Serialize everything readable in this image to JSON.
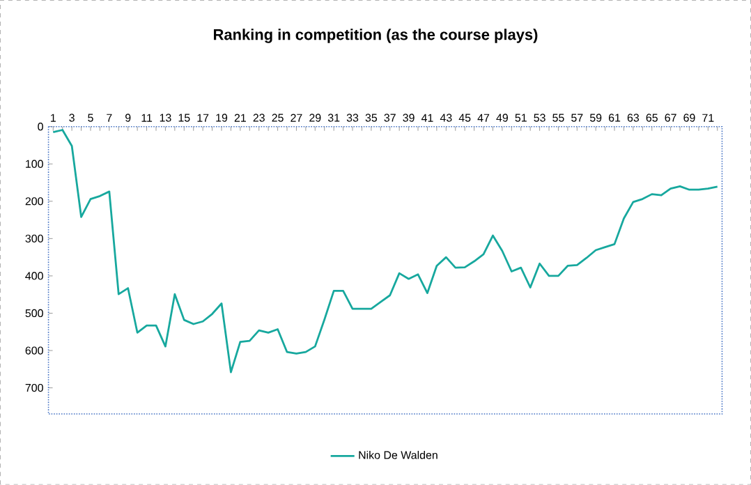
{
  "chart_data": {
    "type": "line",
    "title": "Ranking in competition (as the course plays)",
    "categories": [
      "1",
      null,
      "3",
      null,
      "5",
      null,
      "7",
      null,
      "9",
      null,
      "11",
      null,
      "13",
      null,
      "15",
      null,
      "17",
      null,
      "19",
      null,
      "21",
      null,
      "23",
      null,
      "25",
      null,
      "27",
      null,
      "29",
      null,
      "31",
      null,
      "33",
      null,
      "35",
      null,
      "37",
      null,
      "39",
      null,
      "41",
      null,
      "43",
      null,
      "45",
      null,
      "47",
      null,
      "49",
      null,
      "51",
      null,
      "53",
      null,
      "55",
      null,
      "57",
      null,
      "59",
      null,
      "61",
      null,
      "63",
      null,
      "65",
      null,
      "67",
      null,
      "69",
      null,
      "71",
      null
    ],
    "series": [
      {
        "name": "Niko De Walden",
        "color": "#17a89e",
        "values": [
          15,
          9,
          52,
          242,
          194,
          186,
          174,
          449,
          433,
          552,
          533,
          533,
          589,
          449,
          518,
          529,
          522,
          502,
          474,
          658,
          577,
          574,
          546,
          552,
          543,
          604,
          608,
          604,
          589,
          517,
          440,
          440,
          488,
          488,
          488,
          470,
          452,
          393,
          408,
          396,
          446,
          373,
          350,
          378,
          377,
          361,
          342,
          292,
          333,
          388,
          378,
          431,
          367,
          400,
          400,
          373,
          371,
          352,
          331,
          323,
          315,
          246,
          202,
          194,
          181,
          184,
          166,
          160,
          169,
          169,
          166,
          161
        ]
      }
    ],
    "ylim": [
      770,
      0
    ],
    "yticks": [
      0,
      100,
      200,
      300,
      400,
      500,
      600,
      700
    ],
    "grid": false,
    "legend": "bottom",
    "marker": "none",
    "line_style": "solid"
  }
}
